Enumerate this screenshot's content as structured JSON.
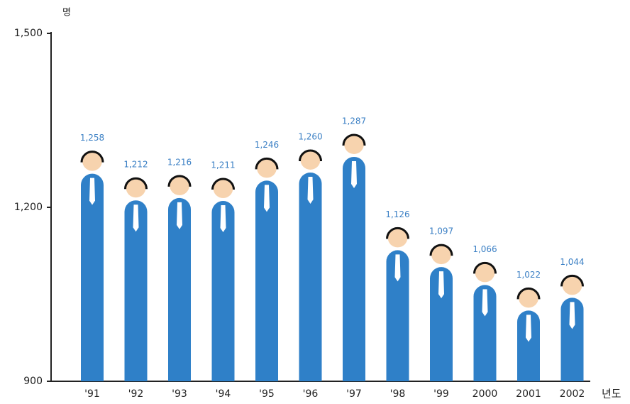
{
  "chart_data": {
    "type": "bar",
    "y_unit": "명",
    "x_label": "년도",
    "categories": [
      "'91",
      "'92",
      "'93",
      "'94",
      "'95",
      "'96",
      "'97",
      "'98",
      "'99",
      "2000",
      "2001",
      "2002"
    ],
    "values": [
      1258,
      1212,
      1216,
      1211,
      1246,
      1260,
      1287,
      1126,
      1097,
      1066,
      1022,
      1044
    ],
    "value_labels": [
      "1,258",
      "1,212",
      "1,216",
      "1,211",
      "1,246",
      "1,260",
      "1,287",
      "1,126",
      "1,097",
      "1,066",
      "1,022",
      "1,044"
    ],
    "color": "#2f80c8",
    "ylim": [
      900,
      1500
    ],
    "yticks": [
      900,
      {
        "value": 1200,
        "label": "1,200"
      },
      {
        "value": 1500,
        "label": "1,500"
      }
    ]
  }
}
